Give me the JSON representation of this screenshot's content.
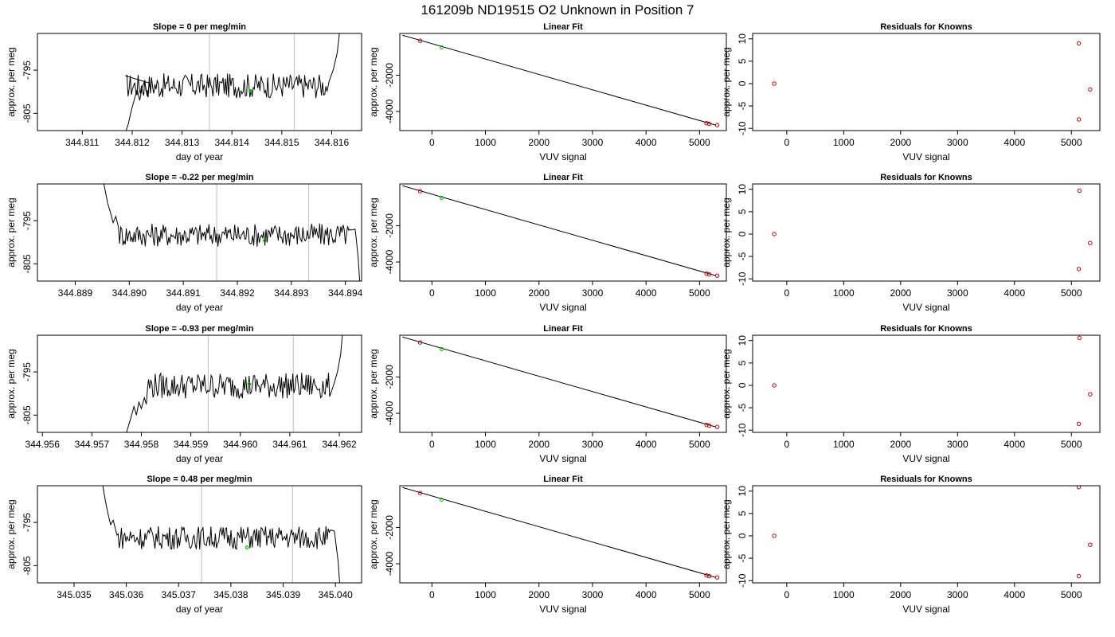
{
  "main_title": "161209b     ND19515   O2 Unknown in Position  7",
  "colors": {
    "trace": "#000000",
    "vline": "#c8c8c8",
    "point_known": "#cc0000",
    "point_unknown": "#00cc00",
    "frame": "#000000"
  },
  "chart_data": [
    {
      "type": "line",
      "title": "Slope =  0  per meg/min",
      "xlabel": "day of year",
      "ylabel": "approx. per meg",
      "xlim": [
        344.8101,
        344.8166
      ],
      "ylim": [
        -809,
        -786.5
      ],
      "xticks": [
        {
          "v": 344.811,
          "label": "344.811"
        },
        {
          "v": 344.812,
          "label": "344.812"
        },
        {
          "v": 344.813,
          "label": "344.813"
        },
        {
          "v": 344.814,
          "label": "344.814"
        },
        {
          "v": 344.815,
          "label": "344.815"
        },
        {
          "v": 344.816,
          "label": "344.816"
        }
      ],
      "yticks": [
        {
          "v": -795,
          "label": "-795"
        },
        {
          "v": -805,
          "label": "-805"
        }
      ],
      "vlines": [
        344.81355,
        344.81525
      ],
      "green_point": {
        "x": 344.81437,
        "y": -799.8
      },
      "trace_points": [
        [
          344.81185,
          -810
        ],
        [
          344.81192,
          -807.5
        ],
        [
          344.81198,
          -804.5
        ],
        [
          344.81205,
          -801.5
        ],
        [
          344.8121,
          -799.5
        ],
        [
          344.81215,
          -802
        ],
        [
          344.8122,
          -799
        ],
        [
          344.81225,
          -797.5
        ],
        [
          344.8123,
          -801
        ],
        [
          344.81235,
          -798
        ]
      ],
      "trace_level": -798.6,
      "trace_noise": 1.8,
      "trace_end": [
        344.81595,
        344.81618
      ],
      "end_direction": "up",
      "start_x": 344.81185,
      "trace_stop": 344.8159
    },
    {
      "type": "line",
      "title": "Slope =  -0.22  per meg/min",
      "xlabel": "day of year",
      "ylabel": "approx. per meg",
      "xlim": [
        344.8883,
        344.8943
      ],
      "ylim": [
        -809,
        -786.5
      ],
      "xticks": [
        {
          "v": 344.889,
          "label": "344.889"
        },
        {
          "v": 344.89,
          "label": "344.890"
        },
        {
          "v": 344.891,
          "label": "344.891"
        },
        {
          "v": 344.892,
          "label": "344.892"
        },
        {
          "v": 344.893,
          "label": "344.893"
        },
        {
          "v": 344.894,
          "label": "344.894"
        }
      ],
      "yticks": [
        {
          "v": -795,
          "label": "-795"
        },
        {
          "v": -805,
          "label": "-805"
        }
      ],
      "vlines": [
        344.89162,
        344.89332
      ],
      "green_point": {
        "x": 344.89251,
        "y": -799.6
      },
      "trace_points": [
        [
          344.88953,
          -786.5
        ],
        [
          344.88957,
          -789
        ],
        [
          344.8896,
          -791
        ],
        [
          344.88965,
          -793
        ],
        [
          344.8897,
          -795.5
        ],
        [
          344.88975,
          -794
        ],
        [
          344.8898,
          -796.5
        ]
      ],
      "trace_level": -798.3,
      "trace_noise": 1.7,
      "trace_end": [
        344.8942,
        344.89428
      ],
      "end_direction": "down",
      "start_x": 344.8898,
      "trace_stop": 344.8941
    },
    {
      "type": "line",
      "title": "Slope =  -0.93  per meg/min",
      "xlabel": "day of year",
      "ylabel": "approx. per meg",
      "xlim": [
        344.9559,
        344.96245
      ],
      "ylim": [
        -809,
        -786.5
      ],
      "xticks": [
        {
          "v": 344.956,
          "label": "344.956"
        },
        {
          "v": 344.957,
          "label": "344.957"
        },
        {
          "v": 344.958,
          "label": "344.958"
        },
        {
          "v": 344.959,
          "label": "344.959"
        },
        {
          "v": 344.96,
          "label": "344.960"
        },
        {
          "v": 344.961,
          "label": "344.961"
        },
        {
          "v": 344.962,
          "label": "344.962"
        }
      ],
      "yticks": [
        {
          "v": -795,
          "label": "-795"
        },
        {
          "v": -805,
          "label": "-805"
        }
      ],
      "vlines": [
        344.95935,
        344.96107
      ],
      "green_point": {
        "x": 344.96018,
        "y": -797.8
      },
      "trace_points": [
        [
          344.9577,
          -809
        ],
        [
          344.95778,
          -806
        ],
        [
          344.95785,
          -803
        ],
        [
          344.9579,
          -805
        ],
        [
          344.95795,
          -802
        ],
        [
          344.958,
          -803.5
        ],
        [
          344.95806,
          -801
        ],
        [
          344.9581,
          -802.5
        ]
      ],
      "trace_level": -798.2,
      "trace_noise": 1.9,
      "trace_end": [
        344.9619,
        344.96208
      ],
      "end_direction": "up",
      "start_x": 344.9581,
      "trace_stop": 344.9618
    },
    {
      "type": "line",
      "title": "Slope =  0.48  per meg/min",
      "xlabel": "day of year",
      "ylabel": "approx. per meg",
      "xlim": [
        345.0343,
        345.0405
      ],
      "ylim": [
        -809,
        -786.5
      ],
      "xticks": [
        {
          "v": 345.035,
          "label": "345.035"
        },
        {
          "v": 345.036,
          "label": "345.036"
        },
        {
          "v": 345.037,
          "label": "345.037"
        },
        {
          "v": 345.038,
          "label": "345.038"
        },
        {
          "v": 345.039,
          "label": "345.039"
        },
        {
          "v": 345.04,
          "label": "345.040"
        }
      ],
      "yticks": [
        {
          "v": -795,
          "label": "-795"
        },
        {
          "v": -805,
          "label": "-805"
        }
      ],
      "vlines": [
        345.03744,
        345.03918
      ],
      "green_point": {
        "x": 345.03831,
        "y": -800.8
      },
      "trace_points": [
        [
          345.03555,
          -786.5
        ],
        [
          345.0356,
          -790
        ],
        [
          345.03565,
          -793
        ],
        [
          345.0357,
          -795.5
        ],
        [
          345.03575,
          -794.5
        ],
        [
          345.0358,
          -797
        ]
      ],
      "trace_level": -798.5,
      "trace_noise": 1.7,
      "trace_end": [
        345.04,
        345.0401
      ],
      "end_direction": "down",
      "start_x": 345.0358,
      "trace_stop": 345.0399
    },
    {
      "type": "scatter",
      "title": "Linear Fit",
      "xlabel": "VUV signal",
      "ylabel": "approx. per meg",
      "xlim": [
        -600,
        5500
      ],
      "ylim": [
        -5050,
        300
      ],
      "xticks": [
        0,
        1000,
        2000,
        3000,
        4000,
        5000
      ],
      "yticks": [
        -2000,
        -4000
      ],
      "fit_line": [
        [
          -550,
          200
        ],
        [
          5300,
          -4750
        ]
      ],
      "knowns": [
        [
          -220,
          -100
        ],
        [
          5130,
          -4640
        ],
        [
          5180,
          -4680
        ],
        [
          5330,
          -4750
        ]
      ],
      "unknown": [
        [
          180,
          -470
        ]
      ]
    },
    {
      "type": "scatter",
      "title": "Linear Fit",
      "xlabel": "VUV signal",
      "ylabel": "approx. per meg",
      "xlim": [
        -600,
        5500
      ],
      "ylim": [
        -5050,
        300
      ],
      "xticks": [
        0,
        1000,
        2000,
        3000,
        4000,
        5000
      ],
      "yticks": [
        -2000,
        -4000
      ],
      "fit_line": [
        [
          -550,
          200
        ],
        [
          5300,
          -4750
        ]
      ],
      "knowns": [
        [
          -220,
          -100
        ],
        [
          5130,
          -4640
        ],
        [
          5180,
          -4680
        ],
        [
          5330,
          -4750
        ]
      ],
      "unknown": [
        [
          180,
          -470
        ]
      ]
    },
    {
      "type": "scatter",
      "title": "Linear Fit",
      "xlabel": "VUV signal",
      "ylabel": "approx. per meg",
      "xlim": [
        -600,
        5500
      ],
      "ylim": [
        -5050,
        300
      ],
      "xticks": [
        0,
        1000,
        2000,
        3000,
        4000,
        5000
      ],
      "yticks": [
        -2000,
        -4000
      ],
      "fit_line": [
        [
          -550,
          200
        ],
        [
          5300,
          -4750
        ]
      ],
      "knowns": [
        [
          -220,
          -100
        ],
        [
          5130,
          -4640
        ],
        [
          5180,
          -4680
        ],
        [
          5330,
          -4750
        ]
      ],
      "unknown": [
        [
          180,
          -470
        ]
      ]
    },
    {
      "type": "scatter",
      "title": "Linear Fit",
      "xlabel": "VUV signal",
      "ylabel": "approx. per meg",
      "xlim": [
        -600,
        5500
      ],
      "ylim": [
        -5050,
        300
      ],
      "xticks": [
        0,
        1000,
        2000,
        3000,
        4000,
        5000
      ],
      "yticks": [
        -2000,
        -4000
      ],
      "fit_line": [
        [
          -550,
          200
        ],
        [
          5300,
          -4750
        ]
      ],
      "knowns": [
        [
          -220,
          -100
        ],
        [
          5130,
          -4640
        ],
        [
          5180,
          -4680
        ],
        [
          5330,
          -4750
        ]
      ],
      "unknown": [
        [
          180,
          -470
        ]
      ]
    },
    {
      "type": "scatter",
      "title": "Residuals for Knowns",
      "xlabel": "VUV signal",
      "ylabel": "approx. per meg",
      "xlim": [
        -600,
        5500
      ],
      "ylim": [
        -10.5,
        11.2
      ],
      "xticks": [
        0,
        1000,
        2000,
        3000,
        4000,
        5000
      ],
      "yticks": [
        10,
        5,
        0,
        -5,
        -10
      ],
      "knowns": [
        [
          -220,
          0
        ],
        [
          5130,
          9.0
        ],
        [
          5130,
          -8.0
        ],
        [
          5330,
          -1.3
        ]
      ]
    },
    {
      "type": "scatter",
      "title": "Residuals for Knowns",
      "xlabel": "VUV signal",
      "ylabel": "approx. per meg",
      "xlim": [
        -600,
        5500
      ],
      "ylim": [
        -10.5,
        11.2
      ],
      "xticks": [
        0,
        1000,
        2000,
        3000,
        4000,
        5000
      ],
      "yticks": [
        10,
        5,
        0,
        -5,
        -10
      ],
      "knowns": [
        [
          -220,
          0
        ],
        [
          5140,
          9.7
        ],
        [
          5130,
          -7.8
        ],
        [
          5330,
          -2.0
        ]
      ]
    },
    {
      "type": "scatter",
      "title": "Residuals for Knowns",
      "xlabel": "VUV signal",
      "ylabel": "approx. per meg",
      "xlim": [
        -600,
        5500
      ],
      "ylim": [
        -10.5,
        11.2
      ],
      "xticks": [
        0,
        1000,
        2000,
        3000,
        4000,
        5000
      ],
      "yticks": [
        10,
        5,
        0,
        -5,
        -10
      ],
      "knowns": [
        [
          -220,
          0
        ],
        [
          5140,
          10.6
        ],
        [
          5130,
          -8.6
        ],
        [
          5330,
          -2.0
        ]
      ]
    },
    {
      "type": "scatter",
      "title": "Residuals for Knowns",
      "xlabel": "VUV signal",
      "ylabel": "approx. per meg",
      "xlim": [
        -600,
        5500
      ],
      "ylim": [
        -10.5,
        11.2
      ],
      "xticks": [
        0,
        1000,
        2000,
        3000,
        4000,
        5000
      ],
      "yticks": [
        10,
        5,
        0,
        -5,
        -10
      ],
      "knowns": [
        [
          -220,
          0
        ],
        [
          5130,
          10.9
        ],
        [
          5130,
          -9.0
        ],
        [
          5330,
          -2.0
        ]
      ]
    }
  ]
}
